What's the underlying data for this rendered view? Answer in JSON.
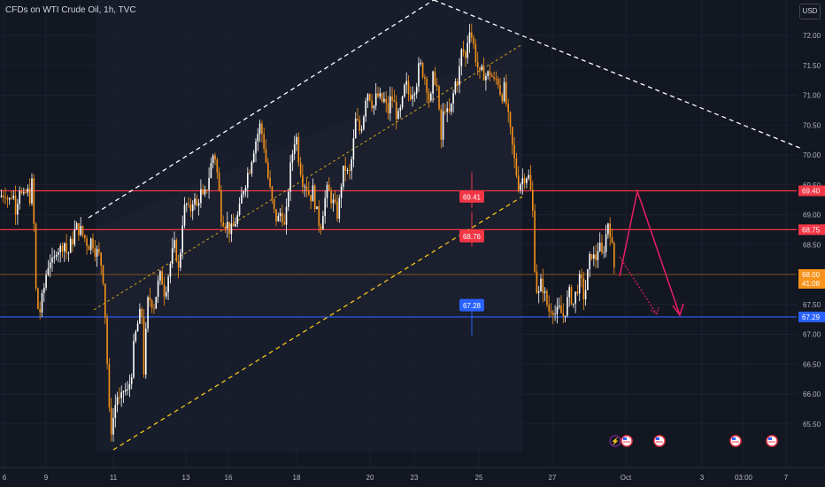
{
  "header": {
    "title": "CFDs on WTI Crude Oil, 1h, TVC",
    "currency_button": "USD"
  },
  "colors": {
    "background": "#131722",
    "grid": "#1c2030",
    "candle_up": "#ffffff",
    "candle_down": "#f7931a",
    "resistance_line": "#f23645",
    "support_line": "#2962ff",
    "current_price_line": "#f7931a",
    "channel_upper": "#ffffff",
    "channel_lower": "#f5c518",
    "projection_arrow": "#e91e63",
    "price_label_red": "#f23645",
    "price_label_blue": "#2962ff",
    "price_label_orange": "#f7931a"
  },
  "chart_data": {
    "type": "candlestick",
    "symbol": "CFDs on WTI Crude Oil",
    "interval": "1h",
    "source": "TVC",
    "currency": "USD",
    "x_tick_labels": [
      "6",
      "9",
      "11",
      "13",
      "16",
      "18",
      "20",
      "23",
      "25",
      "27",
      "Oct",
      "3",
      "03:00",
      "7"
    ],
    "y_tick_labels": [
      "72.00",
      "71.50",
      "71.00",
      "70.50",
      "70.00",
      "69.50",
      "69.00",
      "68.50",
      "68.00",
      "67.50",
      "67.00",
      "66.50",
      "66.00",
      "65.50"
    ],
    "ylim": [
      65.0,
      72.6
    ],
    "price_path": [
      [
        0,
        69.3
      ],
      [
        6,
        69.4
      ],
      [
        10,
        69.2
      ],
      [
        14,
        69.4
      ],
      [
        18,
        69.1
      ],
      [
        22,
        69.5
      ],
      [
        26,
        69.2
      ],
      [
        30,
        69.4
      ],
      [
        34,
        69.3
      ],
      [
        37,
        69.6
      ],
      [
        40,
        67.8
      ],
      [
        44,
        67.3
      ],
      [
        48,
        67.6
      ],
      [
        52,
        68.0
      ],
      [
        56,
        68.3
      ],
      [
        60,
        68.1
      ],
      [
        64,
        68.5
      ],
      [
        68,
        68.4
      ],
      [
        72,
        68.6
      ],
      [
        76,
        68.3
      ],
      [
        80,
        68.5
      ],
      [
        84,
        68.7
      ],
      [
        88,
        68.8
      ],
      [
        92,
        68.7
      ],
      [
        96,
        68.6
      ],
      [
        100,
        68.5
      ],
      [
        104,
        68.6
      ],
      [
        108,
        68.4
      ],
      [
        112,
        68.3
      ],
      [
        116,
        68.1
      ],
      [
        120,
        67.0
      ],
      [
        123,
        65.7
      ],
      [
        126,
        65.4
      ],
      [
        129,
        65.7
      ],
      [
        132,
        66.0
      ],
      [
        136,
        65.8
      ],
      [
        140,
        66.1
      ],
      [
        144,
        66.0
      ],
      [
        148,
        66.3
      ],
      [
        152,
        66.9
      ],
      [
        156,
        67.2
      ],
      [
        160,
        67.4
      ],
      [
        163,
        66.2
      ],
      [
        166,
        67.5
      ],
      [
        170,
        67.6
      ],
      [
        174,
        67.5
      ],
      [
        178,
        67.8
      ],
      [
        182,
        68.0
      ],
      [
        186,
        67.7
      ],
      [
        190,
        68.0
      ],
      [
        194,
        68.3
      ],
      [
        198,
        68.5
      ],
      [
        202,
        68.0
      ],
      [
        206,
        68.9
      ],
      [
        210,
        69.2
      ],
      [
        214,
        69.0
      ],
      [
        218,
        69.3
      ],
      [
        222,
        69.1
      ],
      [
        226,
        69.4
      ],
      [
        230,
        69.2
      ],
      [
        234,
        69.5
      ],
      [
        238,
        69.8
      ],
      [
        242,
        70.1
      ],
      [
        246,
        69.6
      ],
      [
        250,
        69.0
      ],
      [
        254,
        68.9
      ],
      [
        258,
        68.8
      ],
      [
        262,
        68.7
      ],
      [
        266,
        68.9
      ],
      [
        270,
        69.0
      ],
      [
        274,
        69.4
      ],
      [
        278,
        69.6
      ],
      [
        282,
        69.8
      ],
      [
        286,
        70.1
      ],
      [
        290,
        70.3
      ],
      [
        294,
        70.5
      ],
      [
        298,
        70.2
      ],
      [
        302,
        69.7
      ],
      [
        306,
        69.3
      ],
      [
        310,
        69.0
      ],
      [
        314,
        68.9
      ],
      [
        318,
        69.1
      ],
      [
        322,
        68.7
      ],
      [
        326,
        69.5
      ],
      [
        330,
        70.0
      ],
      [
        334,
        70.4
      ],
      [
        338,
        69.9
      ],
      [
        342,
        69.6
      ],
      [
        346,
        69.5
      ],
      [
        350,
        69.3
      ],
      [
        354,
        69.4
      ],
      [
        358,
        69.0
      ],
      [
        362,
        68.8
      ],
      [
        366,
        69.2
      ],
      [
        370,
        69.4
      ],
      [
        374,
        69.3
      ],
      [
        378,
        69.1
      ],
      [
        382,
        69.0
      ],
      [
        386,
        69.6
      ],
      [
        390,
        69.8
      ],
      [
        394,
        69.6
      ],
      [
        398,
        70.0
      ],
      [
        402,
        70.6
      ],
      [
        406,
        70.4
      ],
      [
        410,
        70.6
      ],
      [
        414,
        71.1
      ],
      [
        418,
        71.0
      ],
      [
        422,
        70.8
      ],
      [
        426,
        71.0
      ],
      [
        430,
        70.9
      ],
      [
        434,
        70.9
      ],
      [
        438,
        70.7
      ],
      [
        442,
        71.0
      ],
      [
        446,
        70.8
      ],
      [
        450,
        70.6
      ],
      [
        454,
        70.8
      ],
      [
        458,
        71.2
      ],
      [
        462,
        71.0
      ],
      [
        466,
        71.1
      ],
      [
        470,
        71.2
      ],
      [
        474,
        71.5
      ],
      [
        478,
        71.4
      ],
      [
        482,
        71.2
      ],
      [
        486,
        70.8
      ],
      [
        490,
        71.4
      ],
      [
        494,
        71.1
      ],
      [
        498,
        70.2
      ],
      [
        502,
        70.9
      ],
      [
        506,
        70.6
      ],
      [
        510,
        70.8
      ],
      [
        514,
        71.2
      ],
      [
        518,
        71.3
      ],
      [
        522,
        71.8
      ],
      [
        526,
        71.6
      ],
      [
        530,
        72.2
      ],
      [
        534,
        71.9
      ],
      [
        538,
        71.6
      ],
      [
        542,
        71.3
      ],
      [
        546,
        71.4
      ],
      [
        550,
        71.3
      ],
      [
        554,
        71.4
      ],
      [
        558,
        71.2
      ],
      [
        562,
        71.3
      ],
      [
        566,
        71.0
      ],
      [
        570,
        71.1
      ],
      [
        574,
        70.6
      ],
      [
        578,
        70.2
      ],
      [
        582,
        69.8
      ],
      [
        586,
        69.5
      ],
      [
        590,
        69.6
      ],
      [
        594,
        69.7
      ],
      [
        598,
        69.6
      ],
      [
        602,
        69.0
      ],
      [
        604,
        68.2
      ],
      [
        606,
        67.8
      ],
      [
        608,
        67.6
      ],
      [
        612,
        67.9
      ],
      [
        616,
        67.6
      ],
      [
        620,
        67.4
      ],
      [
        624,
        67.5
      ],
      [
        628,
        67.3
      ],
      [
        632,
        67.4
      ],
      [
        636,
        67.3
      ],
      [
        640,
        67.5
      ],
      [
        644,
        67.7
      ],
      [
        648,
        67.5
      ],
      [
        652,
        67.8
      ],
      [
        656,
        67.9
      ],
      [
        660,
        67.6
      ],
      [
        664,
        68.0
      ],
      [
        668,
        68.4
      ],
      [
        672,
        68.2
      ],
      [
        676,
        68.5
      ],
      [
        680,
        68.3
      ],
      [
        684,
        68.6
      ],
      [
        688,
        69.0
      ],
      [
        690,
        68.6
      ],
      [
        694,
        68.1
      ],
      [
        696,
        68.0
      ]
    ],
    "horizontal_levels": [
      {
        "price": 69.4,
        "color": "#f23645",
        "axis_label": "69.40"
      },
      {
        "price": 68.75,
        "color": "#f23645",
        "axis_label": "68.75"
      },
      {
        "price": 67.29,
        "color": "#2962ff",
        "axis_label": "67.29"
      },
      {
        "price": 68.0,
        "color": "#f7931a",
        "axis_label": "68.00",
        "axis_sublabel": "41:08"
      }
    ],
    "level_tags": [
      {
        "text": "69.41",
        "price": 69.41,
        "color": "#f23645"
      },
      {
        "text": "68.76",
        "price": 68.76,
        "color": "#f23645"
      },
      {
        "text": "67.28",
        "price": 67.28,
        "color": "#2962ff"
      }
    ],
    "event_icons": [
      "lightning-event-icon",
      "us-flag-icon",
      "us-flag-icon",
      "us-flag-icon",
      "us-flag-icon"
    ]
  }
}
